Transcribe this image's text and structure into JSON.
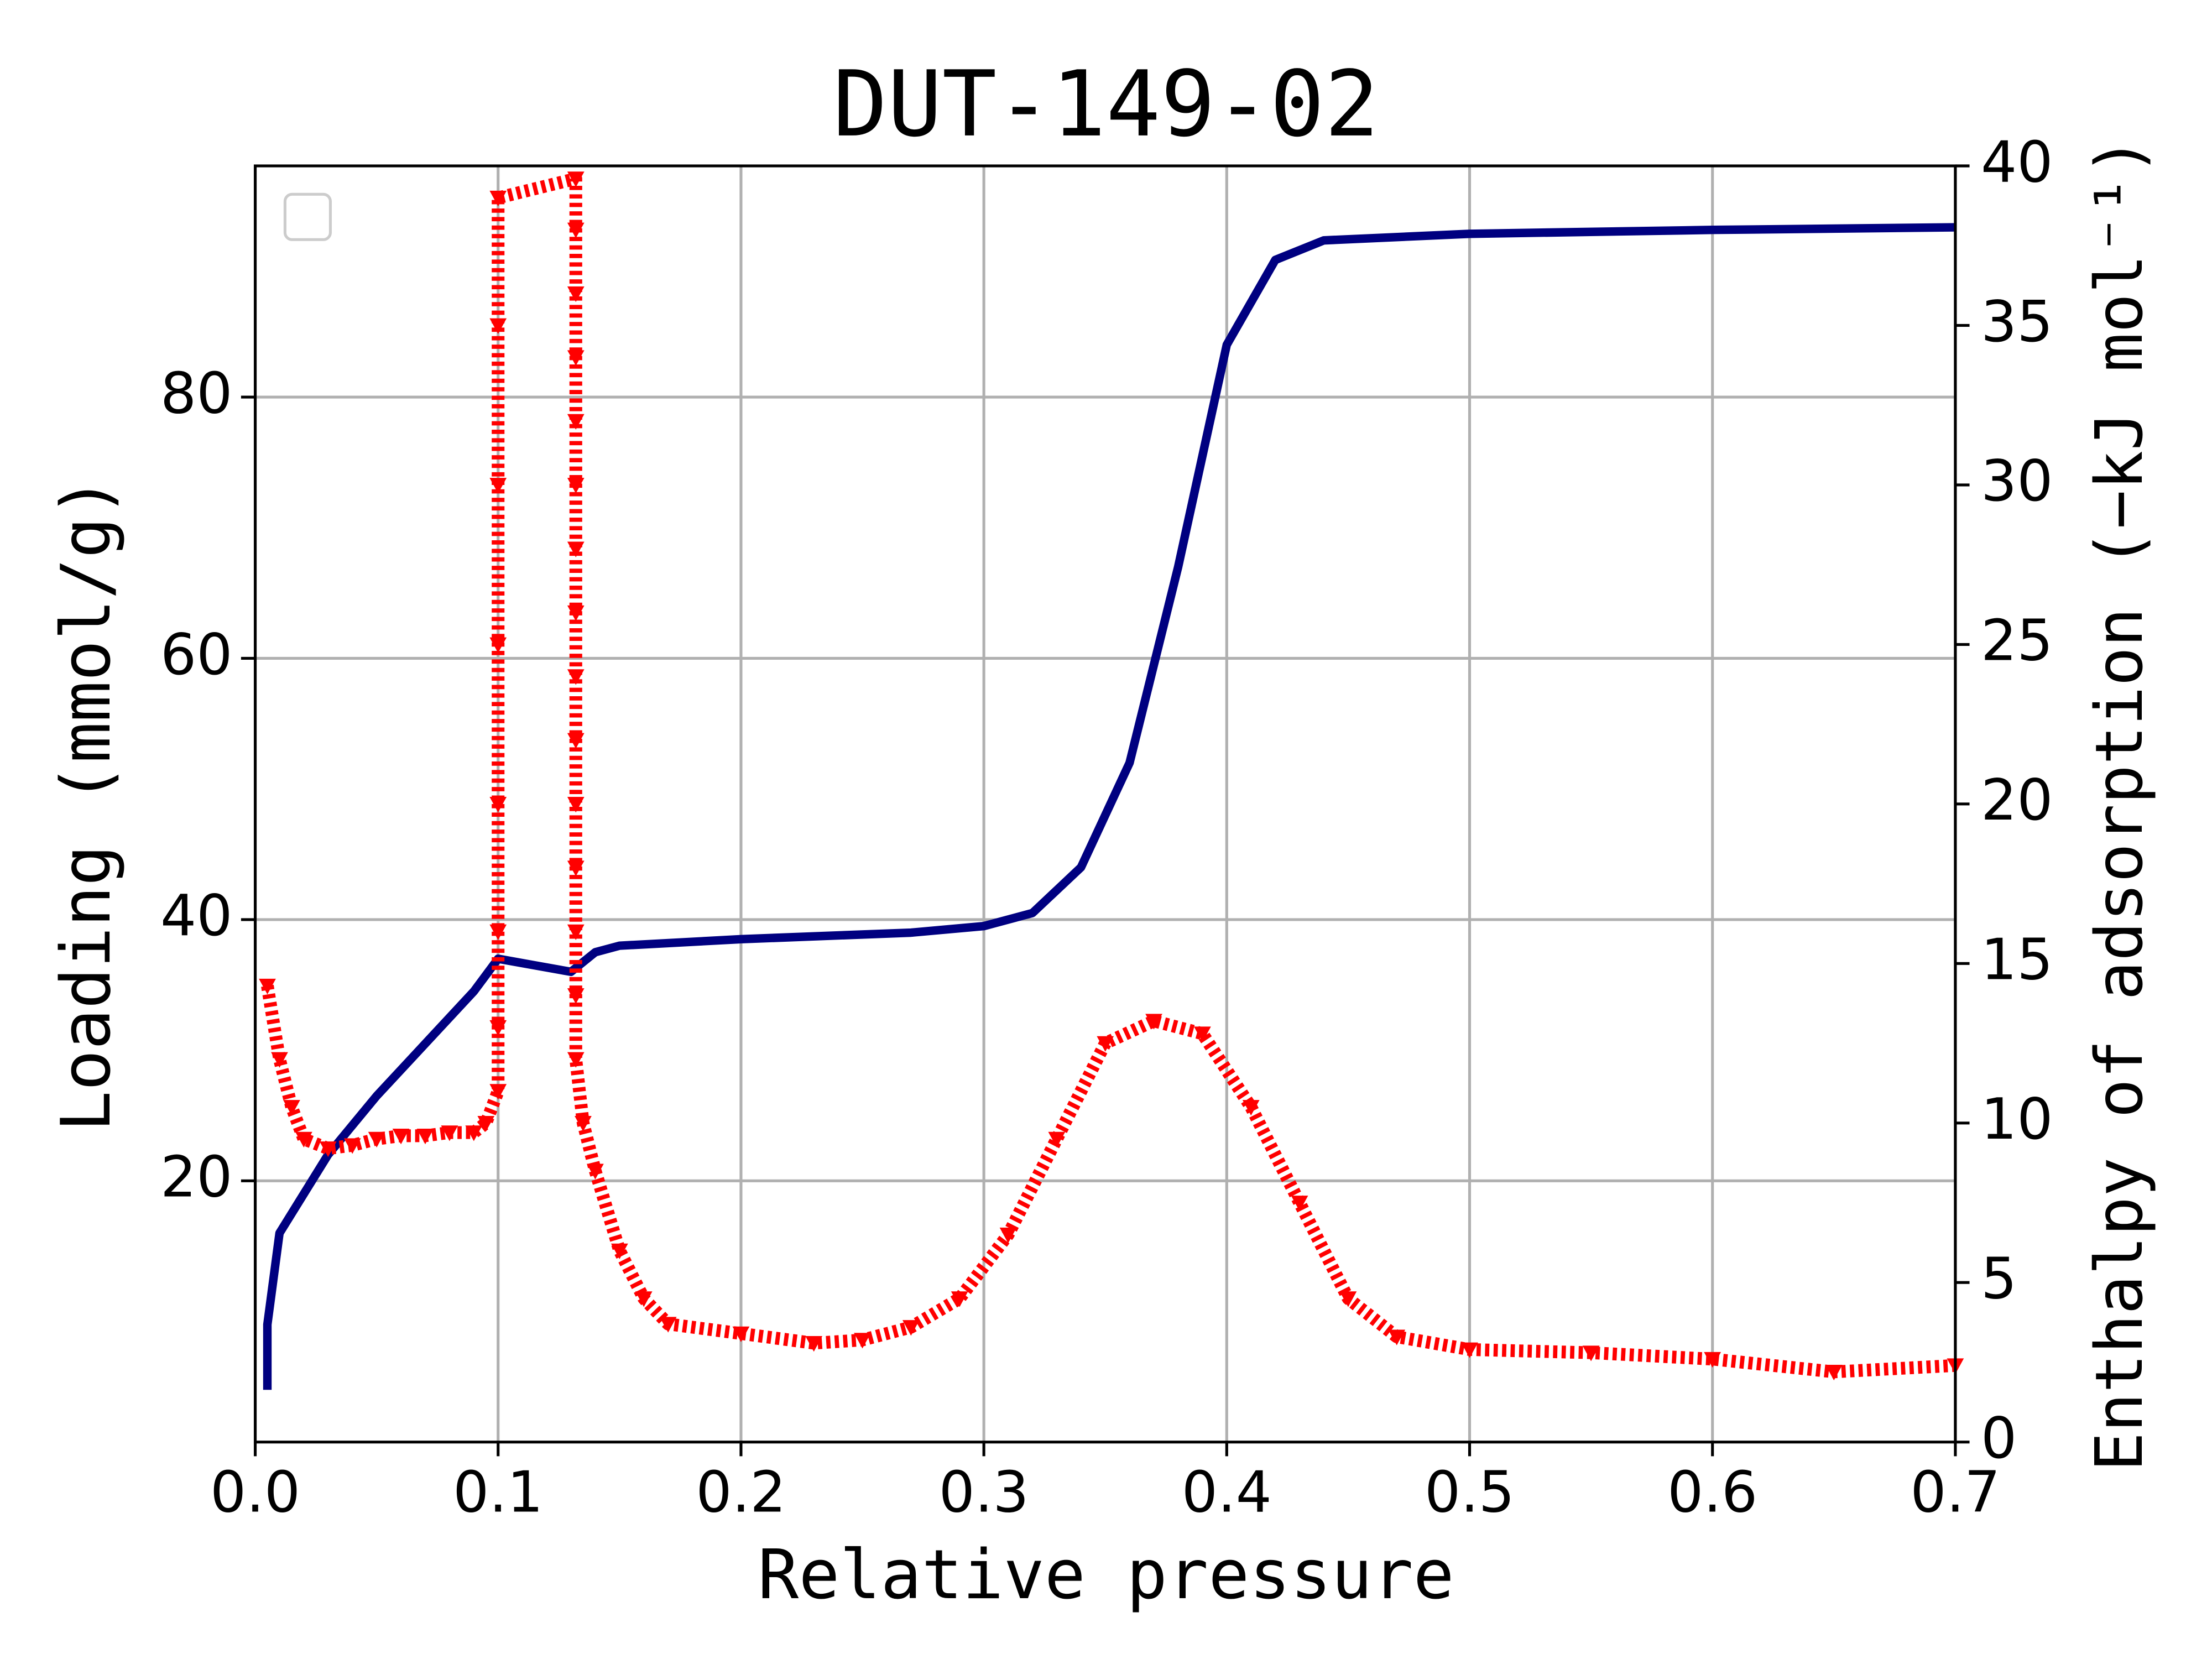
{
  "chart_data": {
    "type": "line",
    "title": "DUT-149-02",
    "xlabel": "Relative pressure",
    "ylabel": "Loading (mmol/g)",
    "y2label": "Enthalpy of adsorption (−kJ mol⁻¹)",
    "xlim": [
      0,
      0.7
    ],
    "xticks": [
      {
        "value": 0,
        "label": "0.0"
      },
      0.1,
      0.2,
      0.3,
      0.4,
      0.5,
      0.6,
      0.7
    ],
    "ylim": [
      0,
      97.7
    ],
    "yticks": [
      20,
      40,
      60,
      80
    ],
    "y2lim": [
      0,
      40
    ],
    "y2ticks": [
      0,
      5,
      10,
      15,
      20,
      25,
      30,
      35,
      40
    ],
    "grid": true,
    "legend": "upper left",
    "series": [
      {
        "color": "#000080",
        "marker": "line",
        "x": [
          0.005,
          0.005,
          0.01,
          0.02,
          0.03,
          0.05,
          0.07,
          0.09,
          0.1,
          0.115,
          0.13,
          0.14,
          0.15,
          0.2,
          0.27,
          0.3,
          0.32,
          0.34,
          0.36,
          0.38,
          0.4,
          0.42,
          0.44,
          0.5,
          0.6,
          0.7
        ],
        "values": [
          4,
          9,
          16,
          19,
          22,
          26.5,
          30.5,
          34.5,
          37,
          36.5,
          36,
          37.5,
          38,
          38.5,
          39,
          39.5,
          40.5,
          44,
          52,
          67,
          84,
          90.5,
          92,
          92.5,
          92.8,
          93
        ]
      },
      {
        "color": "#ff0000",
        "marker": "triangle-down",
        "axis": "y2",
        "x": [
          0.005,
          0.01,
          0.015,
          0.02,
          0.03,
          0.04,
          0.05,
          0.06,
          0.07,
          0.08,
          0.09,
          0.095,
          0.1,
          0.1,
          0.1,
          0.1,
          0.1,
          0.1,
          0.1,
          0.1,
          0.132,
          0.132,
          0.132,
          0.132,
          0.132,
          0.132,
          0.132,
          0.132,
          0.132,
          0.132,
          0.132,
          0.132,
          0.132,
          0.132,
          0.132,
          0.135,
          0.14,
          0.15,
          0.16,
          0.17,
          0.2,
          0.23,
          0.25,
          0.27,
          0.29,
          0.31,
          0.33,
          0.35,
          0.37,
          0.39,
          0.41,
          0.43,
          0.45,
          0.47,
          0.5,
          0.55,
          0.6,
          0.65,
          0.7
        ],
        "values": [
          14.3,
          12,
          10.5,
          9.5,
          9.2,
          9.3,
          9.5,
          9.6,
          9.6,
          9.7,
          9.7,
          10,
          11,
          13,
          16,
          20,
          25,
          30,
          35,
          39,
          39.6,
          38,
          36,
          34,
          32,
          30,
          28,
          26,
          24,
          22,
          20,
          18,
          16,
          14,
          12,
          10,
          8.5,
          6,
          4.5,
          3.7,
          3.4,
          3.1,
          3.2,
          3.6,
          4.5,
          6.5,
          9.5,
          12.5,
          13.2,
          12.8,
          10.5,
          7.5,
          4.5,
          3.3,
          2.9,
          2.8,
          2.6,
          2.2,
          2.4
        ]
      }
    ]
  }
}
